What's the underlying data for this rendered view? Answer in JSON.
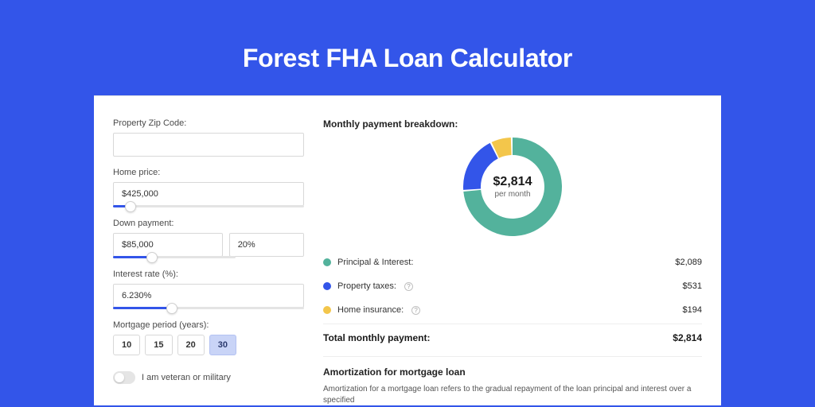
{
  "title": "Forest FHA Loan Calculator",
  "colors": {
    "page_bg": "#3355e9",
    "card_bg": "#ffffff",
    "accent": "#3355e9"
  },
  "form": {
    "zip": {
      "label": "Property Zip Code:",
      "value": ""
    },
    "home_price": {
      "label": "Home price:",
      "value": "$425,000",
      "slider_pct": 9
    },
    "down_payment": {
      "label": "Down payment:",
      "value": "$85,000",
      "pct_value": "20%",
      "slider_pct": 21
    },
    "interest": {
      "label": "Interest rate (%):",
      "value": "6.230%",
      "slider_pct": 31
    },
    "period": {
      "label": "Mortgage period (years):",
      "options": [
        "10",
        "15",
        "20",
        "30"
      ],
      "active": "30"
    },
    "veteran": {
      "label": "I am veteran or military",
      "on": false
    }
  },
  "breakdown": {
    "title": "Monthly payment breakdown:",
    "donut": {
      "amount": "$2,814",
      "sub": "per month",
      "segments": [
        {
          "key": "pi",
          "pct": 74,
          "color": "#53b29c"
        },
        {
          "key": "tax",
          "pct": 19,
          "color": "#3355e9"
        },
        {
          "key": "ins",
          "pct": 7,
          "color": "#f3c64b"
        }
      ],
      "size": 124,
      "thickness": 22
    },
    "rows": [
      {
        "dot": "#53b29c",
        "label": "Principal & Interest:",
        "value": "$2,089",
        "info": false
      },
      {
        "dot": "#3355e9",
        "label": "Property taxes:",
        "value": "$531",
        "info": true
      },
      {
        "dot": "#f3c64b",
        "label": "Home insurance:",
        "value": "$194",
        "info": true
      }
    ],
    "total": {
      "label": "Total monthly payment:",
      "value": "$2,814"
    }
  },
  "amortization": {
    "title": "Amortization for mortgage loan",
    "text": "Amortization for a mortgage loan refers to the gradual repayment of the loan principal and interest over a specified"
  }
}
